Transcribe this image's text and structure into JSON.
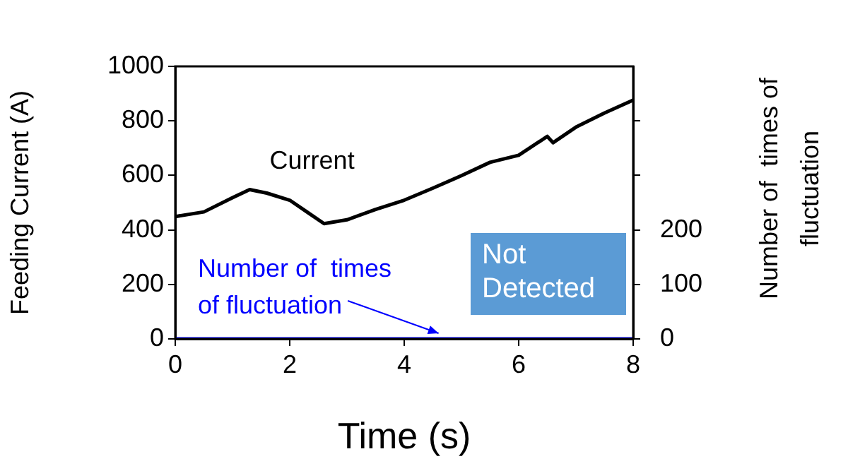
{
  "chart_data": {
    "type": "line",
    "xlabel": "Time (s)",
    "ylabel": "Feeding Current (A)",
    "y2label": "Number of  times of\nfluctuation",
    "xlim": [
      0,
      8
    ],
    "xticks": [
      0,
      2,
      4,
      6,
      8
    ],
    "ylim": [
      0,
      1000
    ],
    "yticks": [
      0,
      200,
      400,
      600,
      800,
      1000
    ],
    "y2lim": [
      0,
      500
    ],
    "y2ticks": [
      0,
      100,
      200,
      {
        "value": 300,
        "label": null
      },
      {
        "value": 400,
        "label": null
      }
    ],
    "series": [
      {
        "name": "Current",
        "color": "#000000",
        "x": [
          0,
          0.5,
          1,
          1.3,
          1.6,
          2,
          2.3,
          2.6,
          3,
          3.5,
          4,
          4.5,
          5,
          5.5,
          6,
          6.5,
          6.6,
          7,
          7.5,
          8
        ],
        "values": [
          449,
          466,
          518,
          548,
          535,
          509,
          466,
          423,
          437,
          475,
          509,
          553,
          599,
          648,
          674,
          743,
          720,
          777,
          829,
          876
        ]
      },
      {
        "color": "#0000ff",
        "axis": "y2",
        "x": [
          0,
          8
        ],
        "values": [
          0,
          0
        ]
      }
    ],
    "annotations": [
      {
        "text": "Number of  times\nof fluctuation",
        "x": 4.6,
        "y": 0
      },
      "Not\nDetected"
    ],
    "grid": false,
    "legend": false,
    "marker": "none",
    "line_style": "solid"
  }
}
